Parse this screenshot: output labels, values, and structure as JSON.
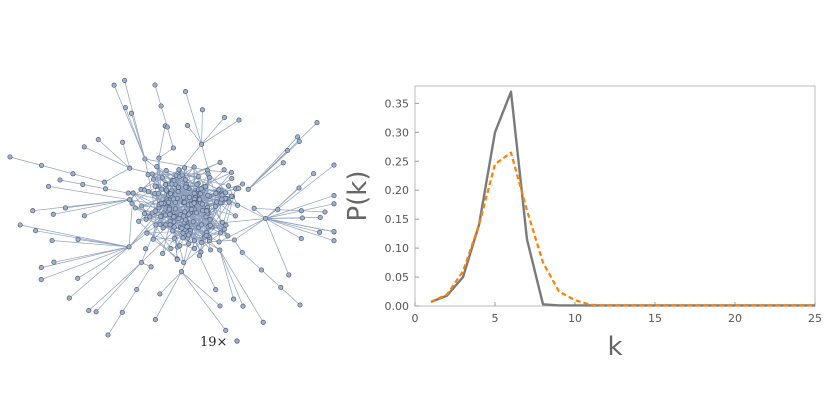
{
  "network": {
    "isolated_caption": "19×",
    "node_color": "#9fb0cc",
    "node_stroke": "#4e5f7c",
    "edge_color": "#8ea0bd"
  },
  "chart_data": {
    "type": "line",
    "xlabel": "k",
    "ylabel": "P(k)",
    "xlim": [
      0,
      25
    ],
    "ylim": [
      0,
      0.38
    ],
    "xticks": [
      0,
      5,
      10,
      15,
      20,
      25
    ],
    "yticks": [
      0.0,
      0.05,
      0.1,
      0.15,
      0.2,
      0.25,
      0.3,
      0.35
    ],
    "grid": false,
    "series": [
      {
        "style": "solid",
        "color": "#7a7a7a",
        "x": [
          1,
          2,
          3,
          4,
          5,
          6,
          7,
          8,
          9,
          10,
          11,
          12,
          13,
          14,
          15,
          16,
          17,
          18,
          19,
          20,
          21,
          22,
          23,
          24,
          25
        ],
        "y": [
          0.007,
          0.018,
          0.05,
          0.14,
          0.3,
          0.37,
          0.115,
          0.003,
          0.001,
          0.001,
          0.001,
          0.001,
          0.001,
          0.001,
          0.001,
          0.001,
          0.001,
          0.001,
          0.001,
          0.001,
          0.001,
          0.001,
          0.001,
          0.001,
          0.001
        ]
      },
      {
        "style": "dashed",
        "color": "#ff8000",
        "x": [
          1,
          2,
          3,
          4,
          5,
          6,
          7,
          8,
          9,
          10,
          11,
          12,
          13,
          14,
          15,
          16,
          17,
          18,
          19,
          20,
          21,
          22,
          23,
          24,
          25
        ],
        "y": [
          0.007,
          0.02,
          0.06,
          0.14,
          0.245,
          0.265,
          0.165,
          0.075,
          0.025,
          0.01,
          0.002,
          0.001,
          0.001,
          0.001,
          0.001,
          0.001,
          0.001,
          0.001,
          0.001,
          0.001,
          0.001,
          0.001,
          0.001,
          0.001,
          0.001
        ]
      }
    ]
  }
}
